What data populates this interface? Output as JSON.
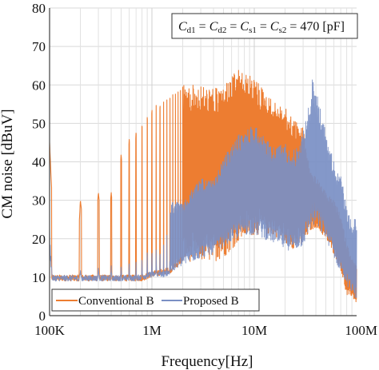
{
  "chart_data": {
    "type": "line",
    "xlabel": "Frequency[Hz]",
    "ylabel": "CM noise [dBuV]",
    "xscale": "log",
    "xlim": [
      100000,
      100000000
    ],
    "ylim": [
      0,
      80
    ],
    "xticks": [
      100000,
      1000000,
      10000000,
      100000000
    ],
    "xticklabels": [
      "100K",
      "1M",
      "10M",
      "100M"
    ],
    "yticks": [
      0,
      10,
      20,
      30,
      40,
      50,
      60,
      70,
      80
    ],
    "yticklabels": [
      "0",
      "10",
      "20",
      "30",
      "40",
      "50",
      "60",
      "70",
      "80"
    ],
    "grid": true,
    "legend_position": "bottom-left",
    "annotation": {
      "parts": [
        {
          "t": "C",
          "i": true
        },
        {
          "t": "d1",
          "s": true
        },
        {
          "t": " = "
        },
        {
          "t": "C",
          "i": true
        },
        {
          "t": "d2",
          "s": true
        },
        {
          "t": " = "
        },
        {
          "t": "C",
          "i": true
        },
        {
          "t": "s1",
          "s": true
        },
        {
          "t": " = "
        },
        {
          "t": "C",
          "i": true
        },
        {
          "t": "s2",
          "s": true
        },
        {
          "t": " = 470 [pF]"
        }
      ]
    },
    "series": [
      {
        "name": "Conventional B",
        "color": "#ed7d31",
        "envelope": [
          [
            100000,
            9,
            45
          ],
          [
            115000,
            9,
            14
          ],
          [
            150000,
            9,
            40
          ],
          [
            180000,
            9,
            14
          ],
          [
            200000,
            9,
            30
          ],
          [
            250000,
            9,
            25
          ],
          [
            300000,
            9,
            32
          ],
          [
            400000,
            9,
            32
          ],
          [
            500000,
            9,
            42
          ],
          [
            600000,
            9,
            46
          ],
          [
            700000,
            9,
            48
          ],
          [
            800000,
            9,
            50
          ],
          [
            1000000,
            10,
            54
          ],
          [
            1500000,
            11,
            57
          ],
          [
            2000000,
            14,
            60
          ],
          [
            3000000,
            14,
            60
          ],
          [
            4000000,
            14,
            59
          ],
          [
            5000000,
            15,
            60
          ],
          [
            7000000,
            19,
            64
          ],
          [
            8000000,
            20,
            63
          ],
          [
            10000000,
            21,
            62
          ],
          [
            15000000,
            21,
            56
          ],
          [
            20000000,
            19,
            54
          ],
          [
            25000000,
            17,
            51
          ],
          [
            30000000,
            18,
            49
          ],
          [
            35000000,
            22,
            38
          ],
          [
            40000000,
            23,
            36
          ],
          [
            50000000,
            20,
            32
          ],
          [
            60000000,
            16,
            30
          ],
          [
            70000000,
            12,
            26
          ],
          [
            80000000,
            5,
            19
          ],
          [
            90000000,
            5,
            15
          ],
          [
            100000000,
            3,
            13
          ]
        ]
      },
      {
        "name": "Proposed B",
        "color": "#7a8fc4",
        "envelope": [
          [
            100000,
            9,
            23
          ],
          [
            110000,
            9,
            12
          ],
          [
            150000,
            9,
            12
          ],
          [
            200000,
            9,
            12
          ],
          [
            300000,
            9,
            13
          ],
          [
            500000,
            9,
            14
          ],
          [
            700000,
            9,
            15
          ],
          [
            1000000,
            10,
            20
          ],
          [
            1300000,
            10,
            23
          ],
          [
            1600000,
            11,
            30
          ],
          [
            2000000,
            13,
            29
          ],
          [
            2500000,
            14,
            33
          ],
          [
            3000000,
            15,
            36
          ],
          [
            4000000,
            16,
            35
          ],
          [
            5000000,
            18,
            41
          ],
          [
            7000000,
            20,
            47
          ],
          [
            8000000,
            21,
            48
          ],
          [
            10000000,
            21,
            50
          ],
          [
            15000000,
            19,
            44
          ],
          [
            20000000,
            17,
            45
          ],
          [
            25000000,
            17,
            43
          ],
          [
            30000000,
            18,
            48
          ],
          [
            35000000,
            22,
            56
          ],
          [
            37000000,
            23,
            62
          ],
          [
            40000000,
            23,
            59
          ],
          [
            50000000,
            20,
            48
          ],
          [
            60000000,
            15,
            40
          ],
          [
            70000000,
            11,
            37
          ],
          [
            80000000,
            8,
            28
          ],
          [
            90000000,
            6,
            24
          ],
          [
            100000000,
            4,
            26
          ]
        ]
      }
    ]
  }
}
